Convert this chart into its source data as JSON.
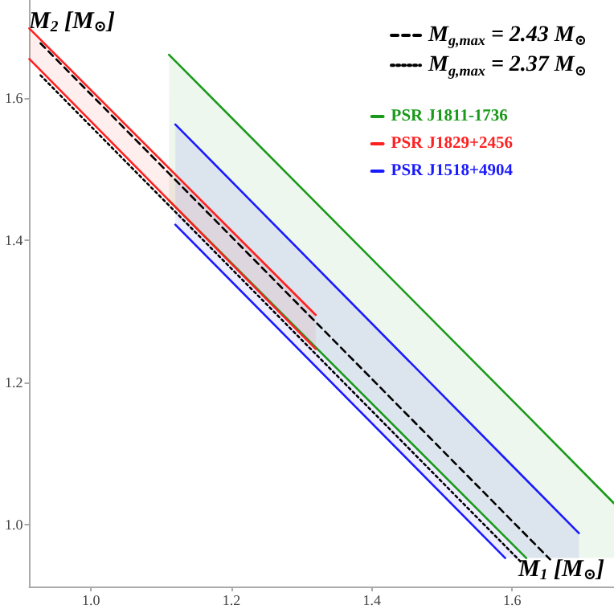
{
  "chart_data": {
    "type": "line",
    "xlabel": "M$_{1}$ [M$_{⊙}$]",
    "ylabel": "M$_{2}$ [M$_{⊙}$]",
    "xlim": [
      0.912,
      1.745
    ],
    "ylim": [
      0.913,
      1.738
    ],
    "xticks": [
      {
        "value": 1,
        "label": "1.0"
      },
      1.2,
      1.4,
      1.6
    ],
    "yticks": [
      {
        "value": 1,
        "label": "1.0"
      },
      1.2,
      1.4,
      1.6
    ],
    "grid": false,
    "legend": "top right",
    "marker": "none",
    "series": [
      {
        "name": "M$_{g,max}$ = 2.43 M$_{⊙}$",
        "color": "#000000",
        "line_style": "dashed",
        "x": [
          0.928,
          1.654
        ],
        "values": [
          1.677,
          0.951
        ]
      },
      {
        "name": "M$_{g,max}$ = 2.37 M$_{⊙}$",
        "color": "#000000",
        "line_style": "dotted",
        "x": [
          0.928,
          1.612
        ],
        "values": [
          1.632,
          0.948
        ]
      },
      {
        "name": "PSR J1811-1736",
        "color": "#1a9a1a",
        "line_style": "solid",
        "x": [
          1.111,
          1.62,
          1.745
        ],
        "values": [
          1.661,
          1.155,
          1.03
        ],
        "lower": [
          1.456,
          0.953,
          0.953
        ],
        "upper": [
          1.661,
          1.155,
          1.03
        ]
      },
      {
        "color": "#1a9a1a",
        "line_style": "solid",
        "x": [
          1.111,
          1.62
        ],
        "values": [
          1.456,
          0.953
        ]
      },
      {
        "name": "PSR J1829+2456",
        "color": "#ff2020",
        "line_style": "solid",
        "x": [
          0.912,
          1.32
        ],
        "values": [
          1.698,
          1.295
        ],
        "lower": [
          1.655,
          1.247
        ],
        "upper": [
          1.698,
          1.295
        ]
      },
      {
        "color": "#ff2020",
        "line_style": "solid",
        "x": [
          0.912,
          1.32
        ],
        "values": [
          1.655,
          1.247
        ]
      },
      {
        "name": "PSR J1518+4904",
        "color": "#1a1aff",
        "line_style": "solid",
        "x": [
          1.12,
          1.59,
          1.695
        ],
        "values": [
          1.563,
          1.093,
          0.988
        ],
        "lower": [
          1.422,
          0.953,
          0.953
        ],
        "upper": [
          1.563,
          1.093,
          0.988
        ]
      },
      {
        "color": "#1a1aff",
        "line_style": "solid",
        "x": [
          1.12,
          1.59
        ],
        "values": [
          1.422,
          0.953
        ]
      }
    ]
  }
}
